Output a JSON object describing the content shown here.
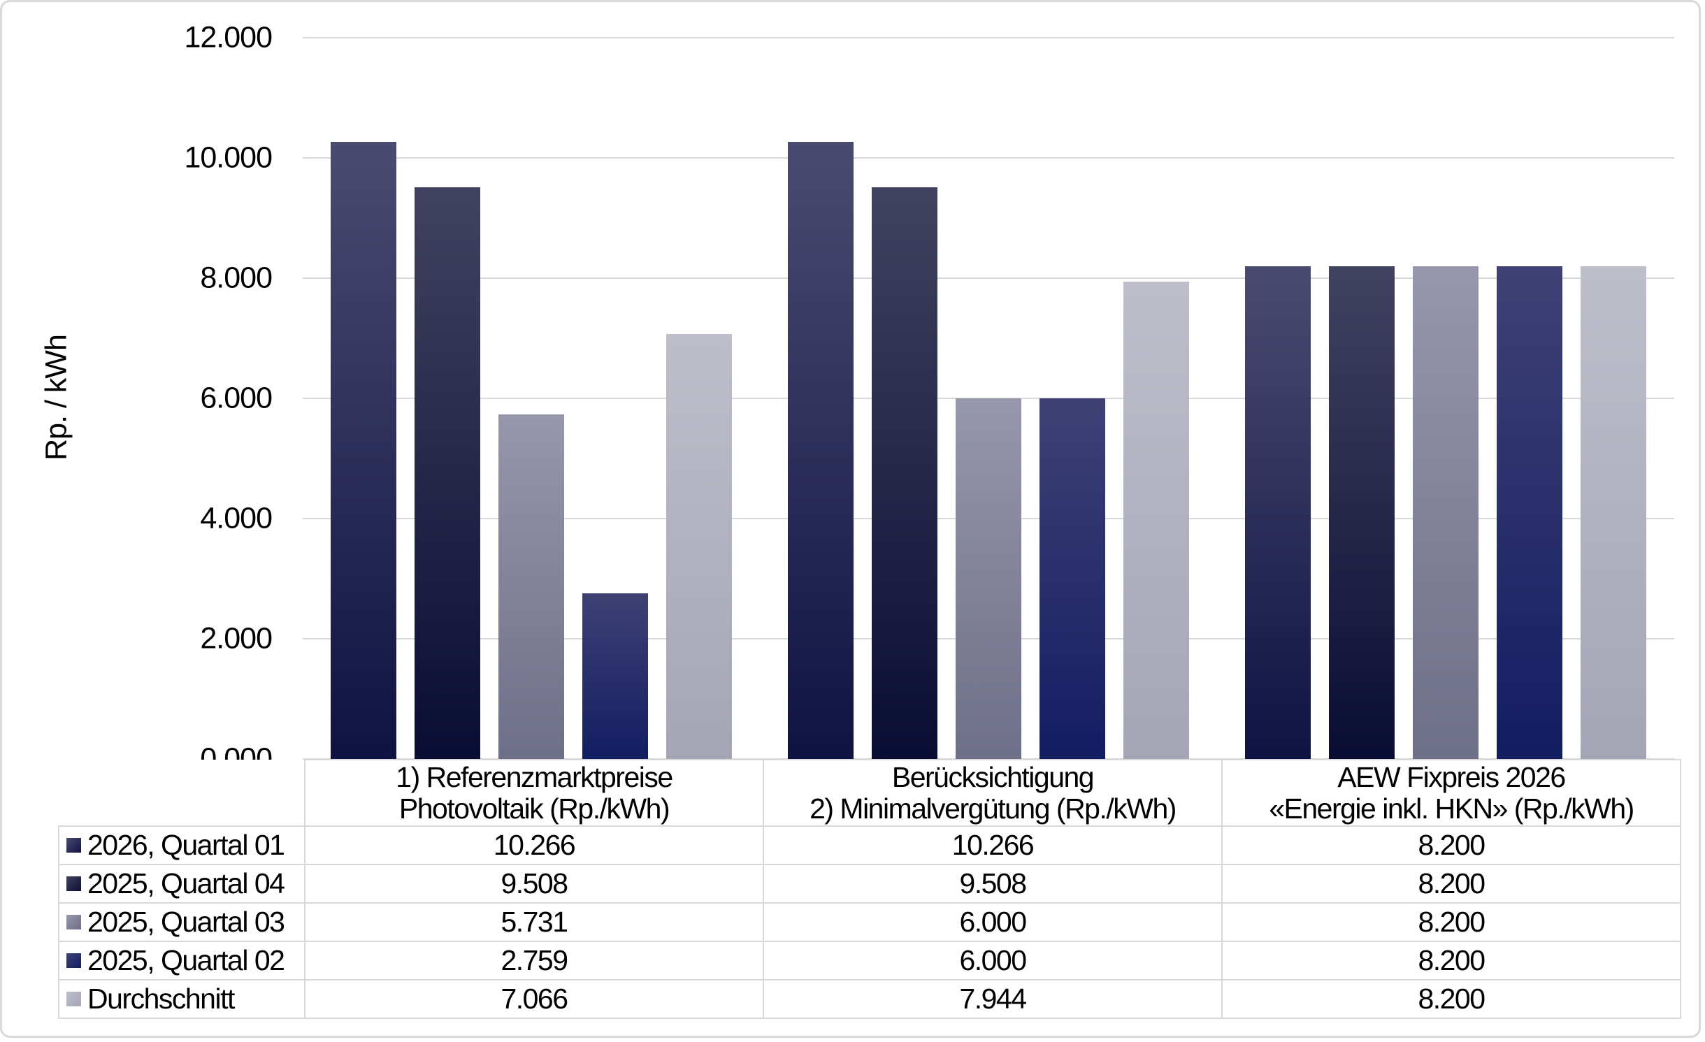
{
  "chart_data": {
    "type": "bar",
    "title": "",
    "ylabel": "Rp. / kWh",
    "ylim": [
      0,
      12
    ],
    "ytick_labels": [
      "12.000",
      "10.000",
      "8.000",
      "6.000",
      "4.000",
      "2.000",
      "0.000"
    ],
    "grid": true,
    "legend_position": "left column of data table below chart",
    "categories": [
      "1) Referenzmarktpreise\nPhotovoltaik (Rp./kWh)",
      "Berücksichtigung\n2) Minimalvergütung (Rp./kWh)",
      "AEW Fixpreis 2026\n«Energie inkl. HKN» (Rp./kWh)"
    ],
    "series": [
      {
        "name": "2026, Quartal 01",
        "values": [
          10.266,
          10.266,
          8.2
        ],
        "display": [
          "10.266",
          "10.266",
          "8.200"
        ],
        "color_top": "#4a4b70",
        "color_bottom": "#0f1342"
      },
      {
        "name": "2025, Quartal 04",
        "values": [
          9.508,
          9.508,
          8.2
        ],
        "display": [
          "9.508",
          "9.508",
          "8.200"
        ],
        "color_top": "#414260",
        "color_bottom": "#0a0d33"
      },
      {
        "name": "2025, Quartal 03",
        "values": [
          5.731,
          6.0,
          8.2
        ],
        "display": [
          "5.731",
          "6.000",
          "8.200"
        ],
        "color_top": "#9697ad",
        "color_bottom": "#6e6f88"
      },
      {
        "name": "2025, Quartal 02",
        "values": [
          2.759,
          6.0,
          8.2
        ],
        "display": [
          "2.759",
          "6.000",
          "8.200"
        ],
        "color_top": "#3f4175",
        "color_bottom": "#121d62"
      },
      {
        "name": "Durchschnitt",
        "values": [
          7.066,
          7.944,
          8.2
        ],
        "display": [
          "7.066",
          "7.944",
          "8.200"
        ],
        "color_top": "#bdbeca",
        "color_bottom": "#a5a6b5"
      }
    ],
    "colors": {
      "gridline": "#d9d9d9",
      "table_border": "#d9d9d9",
      "text": "#000000",
      "background": "#ffffff"
    }
  }
}
